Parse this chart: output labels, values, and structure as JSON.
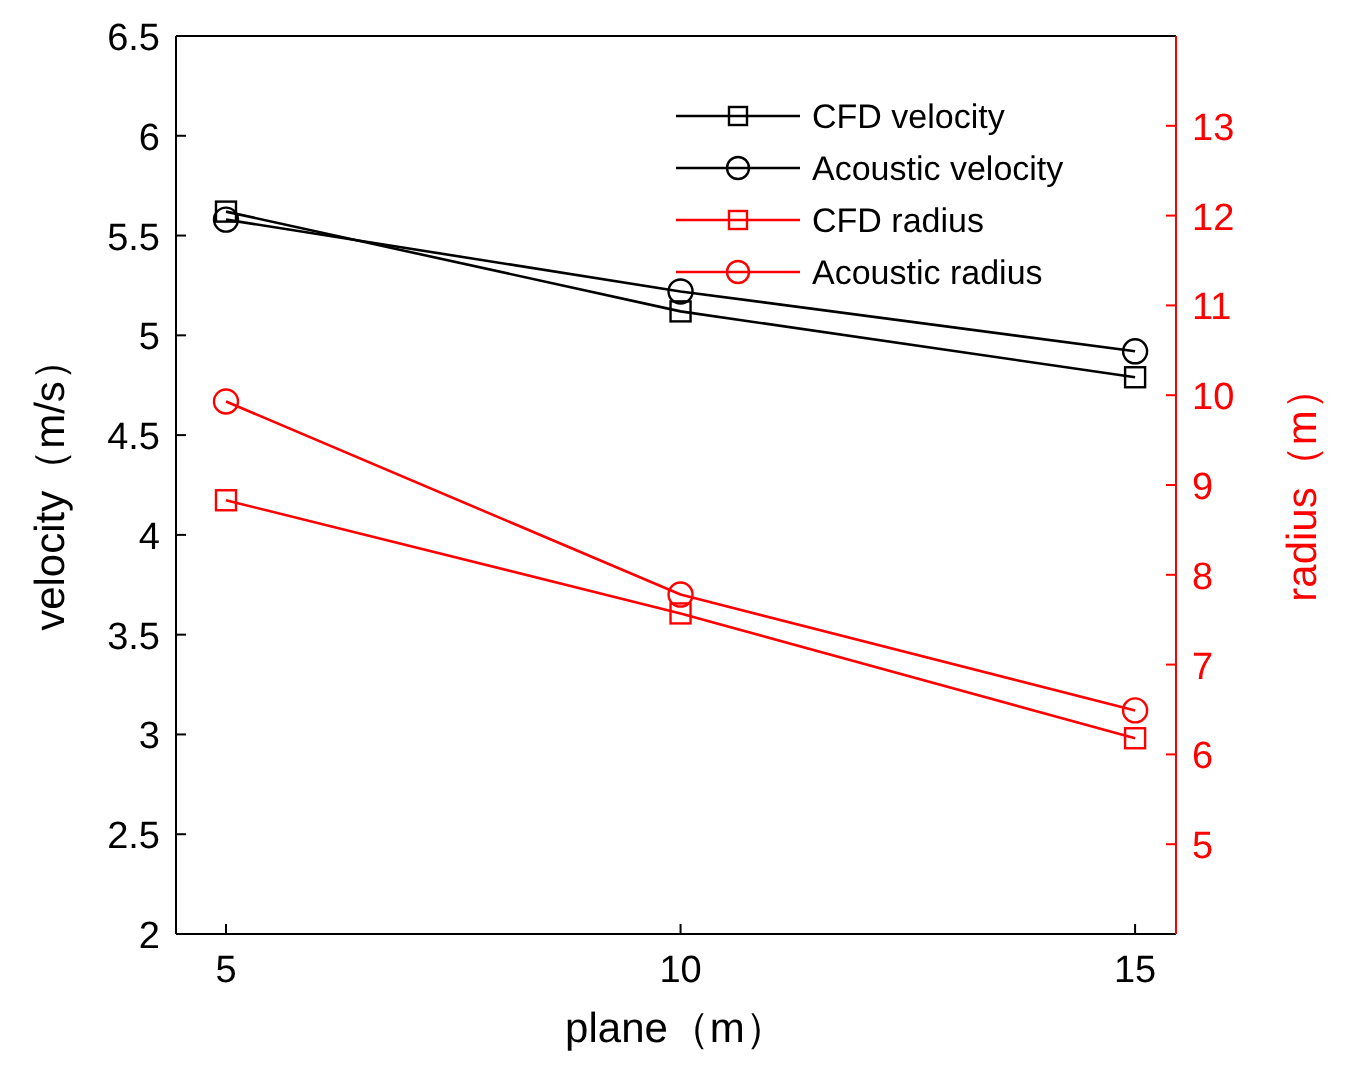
{
  "chart_data": {
    "type": "line",
    "xlabel": "plane（m）",
    "ylabel": "velocity（m/s）",
    "y2label": "radius（m）",
    "x": [
      5,
      10,
      15
    ],
    "xlim": [
      4.45,
      15.45
    ],
    "xticks": [
      5,
      10,
      15
    ],
    "ylim": [
      2,
      6.5
    ],
    "yticks": [
      2,
      2.5,
      3,
      3.5,
      4,
      4.5,
      5,
      5.5,
      6,
      6.5
    ],
    "y2lim": [
      4,
      14
    ],
    "y2ticks": [
      5,
      6,
      7,
      8,
      9,
      10,
      11,
      12,
      13
    ],
    "legend": "top right",
    "line_style": "solid",
    "grid": false,
    "series": [
      {
        "name": "CFD velocity",
        "color": "#000000",
        "marker": "square",
        "values": [
          5.62,
          5.12,
          4.79
        ]
      },
      {
        "name": "Acoustic velocity",
        "color": "#000000",
        "marker": "circle",
        "values": [
          5.58,
          5.22,
          4.92
        ]
      },
      {
        "name": "CFD radius",
        "color": "#ff0000",
        "marker": "square",
        "axis": "y2",
        "values": [
          8.83,
          7.57,
          6.18
        ]
      },
      {
        "name": "Acoustic radius",
        "color": "#ff0000",
        "marker": "circle",
        "axis": "y2",
        "values": [
          9.93,
          7.78,
          6.49
        ]
      }
    ]
  }
}
